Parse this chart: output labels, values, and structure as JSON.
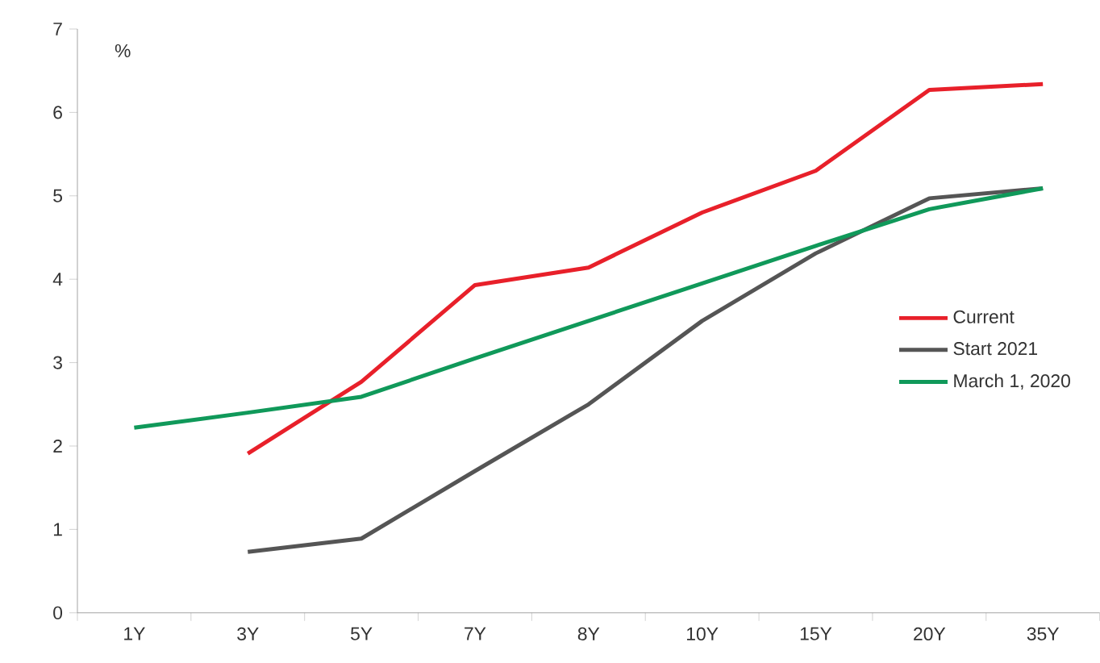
{
  "chart_data": {
    "type": "line",
    "ylabel": "%",
    "categories": [
      "1Y",
      "3Y",
      "5Y",
      "7Y",
      "8Y",
      "10Y",
      "15Y",
      "20Y",
      "35Y"
    ],
    "series": [
      {
        "name": "Current",
        "color": "#e8202a",
        "values": [
          null,
          1.91,
          2.77,
          3.93,
          4.14,
          4.8,
          5.3,
          6.27,
          6.34
        ]
      },
      {
        "name": "Start 2021",
        "color": "#555555",
        "values": [
          null,
          0.73,
          0.89,
          1.7,
          2.5,
          3.5,
          4.31,
          4.97,
          5.09
        ]
      },
      {
        "name": "March 1, 2020",
        "color": "#10995a",
        "values": [
          2.22,
          2.4,
          2.59,
          3.05,
          3.5,
          3.95,
          4.4,
          4.84,
          5.09
        ]
      }
    ],
    "ylim": [
      0,
      7
    ],
    "yticks": [
      0,
      1,
      2,
      3,
      4,
      5,
      6,
      7
    ],
    "grid": false,
    "legend": "right",
    "marker": "none",
    "line_style": "solid"
  }
}
